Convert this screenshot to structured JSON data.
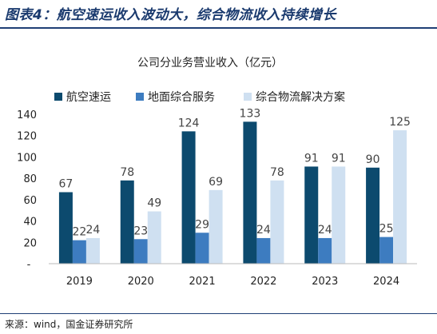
{
  "heading": "图表4：航空速运收入波动大，综合物流收入持续增长",
  "source": "来源：wind，国金证券研究所",
  "colors": {
    "heading": "#1a3a6e",
    "rule": "#1f3f75"
  },
  "chart_data": {
    "type": "bar",
    "title": "公司分业务营业收入（亿元）",
    "xlabel": "",
    "ylabel": "",
    "categories": [
      "2019",
      "2020",
      "2021",
      "2022",
      "2023",
      "2024"
    ],
    "series": [
      {
        "name": "航空速运",
        "color": "#0c4a6e",
        "values": [
          67,
          78,
          124,
          133,
          91,
          90
        ]
      },
      {
        "name": "地面综合服务",
        "color": "#3d7cc0",
        "values": [
          22,
          23,
          29,
          24,
          24,
          25
        ]
      },
      {
        "name": "综合物流解决方案",
        "color": "#cfe0f1",
        "values": [
          24,
          49,
          69,
          78,
          91,
          125
        ]
      }
    ],
    "ylim": [
      0,
      140
    ],
    "yticks": [
      20,
      40,
      60,
      80,
      100,
      120,
      140
    ],
    "zero_tick_label": "-",
    "grid": false,
    "legend_position": "top"
  }
}
